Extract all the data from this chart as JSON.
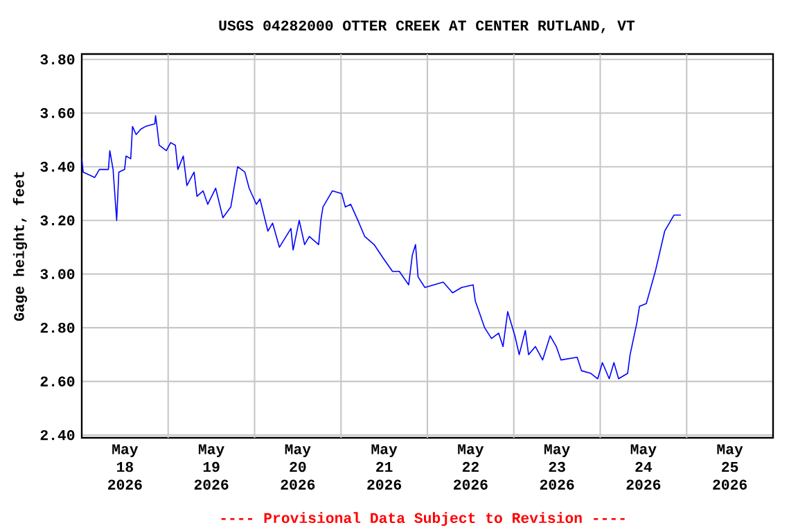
{
  "chart_data": {
    "type": "line",
    "title": "USGS 04282000 OTTER CREEK AT CENTER RUTLAND, VT",
    "ylabel": "Gage height, feet",
    "annotations": [
      "---- Provisional Data Subject to Revision ----"
    ],
    "xlim": [
      "2026-05-18T00:00",
      "2026-05-26T00:00"
    ],
    "xticks": [
      {
        "value": "2026-05-18T12:00",
        "label": "May 18 2026"
      },
      {
        "value": "2026-05-19T12:00",
        "label": "May 19 2026"
      },
      {
        "value": "2026-05-20T12:00",
        "label": "May 20 2026"
      },
      {
        "value": "2026-05-21T12:00",
        "label": "May 21 2026"
      },
      {
        "value": "2026-05-22T12:00",
        "label": "May 22 2026"
      },
      {
        "value": "2026-05-23T12:00",
        "label": "May 23 2026"
      },
      {
        "value": "2026-05-24T12:00",
        "label": "May 24 2026"
      },
      {
        "value": "2026-05-25T12:00",
        "label": "May 25 2026"
      },
      {
        "value": "2026-05-19T00:00",
        "label": null
      },
      {
        "value": "2026-05-20T00:00",
        "label": null
      },
      {
        "value": "2026-05-21T00:00",
        "label": null
      },
      {
        "value": "2026-05-22T00:00",
        "label": null
      },
      {
        "value": "2026-05-23T00:00",
        "label": null
      },
      {
        "value": "2026-05-24T00:00",
        "label": null
      },
      {
        "value": "2026-05-25T00:00",
        "label": null
      }
    ],
    "ylim": [
      2.39,
      3.82
    ],
    "yticks": [
      {
        "value": 2.4,
        "label": "2.40"
      },
      {
        "value": 2.6,
        "label": "2.60"
      },
      {
        "value": 2.8,
        "label": "2.80"
      },
      {
        "value": 3.0,
        "label": "3.00"
      },
      {
        "value": 3.2,
        "label": "3.20"
      },
      {
        "value": 3.4,
        "label": "3.40"
      },
      {
        "value": 3.6,
        "label": "3.60"
      },
      {
        "value": 3.8,
        "label": "3.80"
      }
    ],
    "grid": true,
    "marker": "none",
    "line_style": "solid",
    "series": [
      {
        "color": "#0000ff",
        "x": [
          "2026-05-18T00:00",
          "2026-05-18T00:24",
          "2026-05-18T03:36",
          "2026-05-18T04:54",
          "2026-05-18T07:24",
          "2026-05-18T07:48",
          "2026-05-18T08:42",
          "2026-05-18T09:42",
          "2026-05-18T10:18",
          "2026-05-18T11:54",
          "2026-05-18T12:18",
          "2026-05-18T13:36",
          "2026-05-18T14:06",
          "2026-05-18T15:06",
          "2026-05-18T16:24",
          "2026-05-18T17:42",
          "2026-05-18T20:18",
          "2026-05-18T20:30",
          "2026-05-18T20:54",
          "2026-05-18T21:30",
          "2026-05-18T23:30",
          "2026-05-19T00:42",
          "2026-05-19T02:00",
          "2026-05-19T02:42",
          "2026-05-19T04:12",
          "2026-05-19T05:12",
          "2026-05-19T07:12",
          "2026-05-19T08:00",
          "2026-05-19T09:42",
          "2026-05-19T11:00",
          "2026-05-19T13:12",
          "2026-05-19T15:12",
          "2026-05-19T17:24",
          "2026-05-19T19:18",
          "2026-05-19T21:18",
          "2026-05-19T22:30",
          "2026-05-20T00:30",
          "2026-05-20T01:30",
          "2026-05-20T03:42",
          "2026-05-20T05:00",
          "2026-05-20T06:54",
          "2026-05-20T10:06",
          "2026-05-20T10:42",
          "2026-05-20T12:24",
          "2026-05-20T13:54",
          "2026-05-20T15:12",
          "2026-05-20T17:48",
          "2026-05-20T18:24",
          "2026-05-20T19:00",
          "2026-05-20T21:36",
          "2026-05-21T00:12",
          "2026-05-21T01:12",
          "2026-05-21T02:42",
          "2026-05-21T04:42",
          "2026-05-21T06:36",
          "2026-05-21T09:12",
          "2026-05-21T11:42",
          "2026-05-21T14:18",
          "2026-05-21T16:12",
          "2026-05-21T18:48",
          "2026-05-21T19:48",
          "2026-05-21T20:42",
          "2026-05-21T21:24",
          "2026-05-21T23:18",
          "2026-05-22T04:24",
          "2026-05-22T07:00",
          "2026-05-22T09:30",
          "2026-05-22T12:42",
          "2026-05-22T13:18",
          "2026-05-22T14:36",
          "2026-05-22T15:54",
          "2026-05-22T17:48",
          "2026-05-22T19:48",
          "2026-05-22T21:00",
          "2026-05-22T22:18",
          "2026-05-23T00:18",
          "2026-05-23T01:30",
          "2026-05-23T03:12",
          "2026-05-23T04:06",
          "2026-05-23T06:00",
          "2026-05-23T08:00",
          "2026-05-23T10:06",
          "2026-05-23T11:48",
          "2026-05-23T13:06",
          "2026-05-23T17:36",
          "2026-05-23T18:48",
          "2026-05-23T21:24",
          "2026-05-23T23:18",
          "2026-05-24T00:36",
          "2026-05-24T02:30",
          "2026-05-24T03:48",
          "2026-05-24T05:06",
          "2026-05-24T07:36",
          "2026-05-24T08:18",
          "2026-05-24T10:12",
          "2026-05-24T10:54",
          "2026-05-24T12:48",
          "2026-05-24T15:18",
          "2026-05-24T17:54",
          "2026-05-24T20:30",
          "2026-05-24T22:24"
        ],
        "values": [
          3.43,
          3.38,
          3.36,
          3.39,
          3.39,
          3.46,
          3.39,
          3.2,
          3.38,
          3.39,
          3.44,
          3.43,
          3.55,
          3.52,
          3.54,
          3.55,
          3.56,
          3.59,
          3.55,
          3.48,
          3.46,
          3.49,
          3.48,
          3.39,
          3.44,
          3.33,
          3.38,
          3.29,
          3.31,
          3.26,
          3.32,
          3.21,
          3.25,
          3.4,
          3.38,
          3.32,
          3.26,
          3.28,
          3.16,
          3.19,
          3.1,
          3.17,
          3.09,
          3.2,
          3.11,
          3.14,
          3.11,
          3.2,
          3.25,
          3.31,
          3.3,
          3.25,
          3.26,
          3.2,
          3.14,
          3.11,
          3.06,
          3.01,
          3.01,
          2.96,
          3.07,
          3.11,
          2.99,
          2.95,
          2.97,
          2.93,
          2.95,
          2.96,
          2.9,
          2.85,
          2.8,
          2.76,
          2.78,
          2.73,
          2.86,
          2.77,
          2.7,
          2.79,
          2.7,
          2.73,
          2.68,
          2.77,
          2.73,
          2.68,
          2.69,
          2.64,
          2.63,
          2.61,
          2.67,
          2.61,
          2.67,
          2.61,
          2.63,
          2.7,
          2.82,
          2.88,
          2.89,
          3.01,
          3.16,
          3.22,
          3.22
        ]
      }
    ]
  }
}
